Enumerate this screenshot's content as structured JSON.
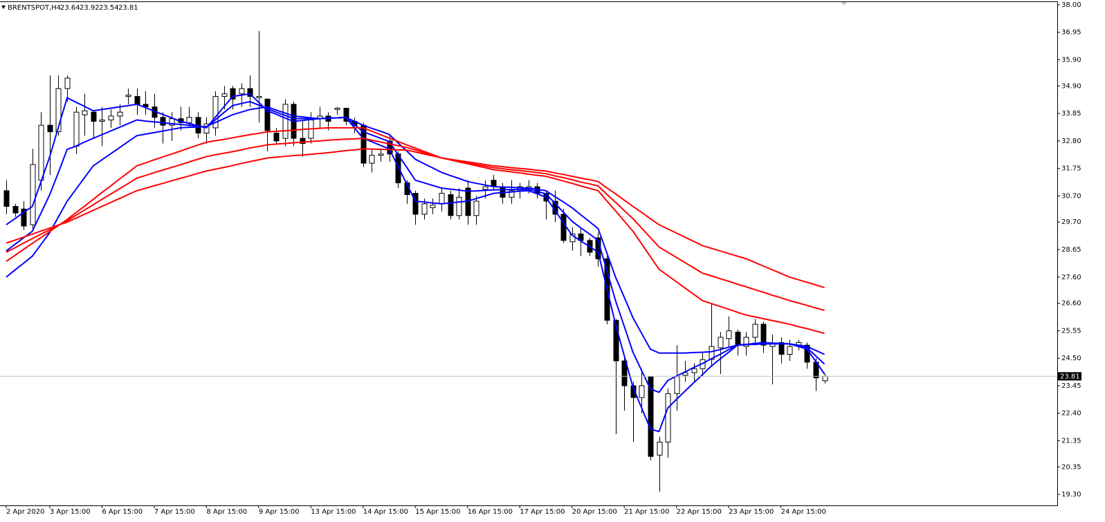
{
  "chart_data": {
    "type": "candlestick",
    "symbol": "BRENTSPOT,H4",
    "categories": [
      "2 Apr 2020",
      null,
      null,
      null,
      null,
      "3 Apr 15:00",
      null,
      null,
      null,
      null,
      null,
      "6 Apr 15:00",
      null,
      null,
      null,
      null,
      null,
      "7 Apr 15:00",
      null,
      null,
      null,
      null,
      null,
      "8 Apr 15:00",
      null,
      null,
      null,
      null,
      null,
      "9 Apr 15:00",
      null,
      null,
      null,
      null,
      null,
      "13 Apr 15:00",
      null,
      null,
      null,
      null,
      null,
      "14 Apr 15:00",
      null,
      null,
      null,
      null,
      null,
      "15 Apr 15:00",
      null,
      null,
      null,
      null,
      null,
      "16 Apr 15:00",
      null,
      null,
      null,
      null,
      null,
      "17 Apr 15:00",
      null,
      null,
      null,
      null,
      null,
      "20 Apr 15:00",
      null,
      null,
      null,
      null,
      null,
      "21 Apr 15:00",
      null,
      null,
      null,
      null,
      null,
      "22 Apr 15:00",
      null,
      null,
      null,
      null,
      null,
      "23 Apr 15:00",
      null,
      null,
      null,
      null,
      null,
      "24 Apr 15:00",
      null,
      null,
      null,
      null,
      null
    ],
    "open": [
      30.9,
      30.3,
      30.2,
      29.6,
      31.3,
      33.4,
      33.15,
      34.8,
      32.6,
      33.8,
      33.9,
      33.55,
      33.6,
      33.75,
      34.5,
      34.5,
      34.2,
      34.1,
      33.7,
      33.4,
      33.65,
      33.5,
      33.7,
      33.1,
      33.3,
      34.5,
      34.8,
      34.6,
      34.8,
      34.45,
      34.4,
      33.1,
      32.9,
      34.2,
      32.9,
      32.9,
      33.65,
      33.75,
      34.0,
      34.05,
      33.55,
      33.4,
      31.95,
      32.25,
      32.8,
      32.3,
      31.2,
      30.8,
      30.0,
      30.25,
      30.4,
      30.75,
      29.95,
      31.0,
      29.95,
      30.95,
      31.3,
      31.05,
      30.65,
      30.9,
      31.0,
      31.05,
      30.8,
      30.5,
      30.0,
      28.95,
      29.25,
      29.0,
      29.1,
      28.3,
      25.95,
      24.4,
      23.45,
      23.0,
      23.8,
      20.8,
      21.3,
      23.15,
      23.85,
      23.95,
      24.1,
      24.45,
      24.9,
      25.25,
      25.5,
      24.95,
      25.3,
      25.8,
      24.95,
      25.1,
      24.65,
      25.0,
      25.0,
      24.35,
      23.64
    ],
    "high": [
      31.3,
      30.4,
      30.5,
      32.5,
      33.9,
      35.3,
      35.3,
      35.3,
      34.1,
      34.6,
      33.9,
      34.1,
      34.0,
      34.2,
      34.8,
      34.8,
      34.7,
      34.6,
      33.9,
      33.9,
      34.1,
      34.1,
      33.9,
      33.7,
      34.7,
      34.9,
      34.9,
      35.0,
      35.3,
      37.0,
      34.4,
      33.3,
      34.4,
      34.3,
      33.6,
      33.9,
      34.1,
      33.9,
      34.1,
      34.05,
      33.7,
      33.5,
      32.5,
      32.5,
      33.0,
      32.4,
      31.3,
      30.9,
      30.6,
      30.6,
      31.0,
      30.9,
      31.0,
      31.3,
      30.7,
      31.3,
      31.5,
      31.2,
      31.3,
      31.2,
      31.3,
      31.2,
      30.9,
      30.9,
      30.2,
      29.5,
      29.5,
      29.1,
      29.3,
      28.4,
      26.0,
      24.6,
      23.6,
      24.1,
      23.8,
      21.5,
      23.35,
      25.0,
      24.4,
      24.3,
      24.7,
      26.6,
      25.5,
      26.1,
      25.6,
      25.5,
      26.0,
      25.9,
      25.4,
      25.3,
      25.2,
      25.2,
      25.1,
      24.5,
      23.92
    ],
    "low": [
      30.0,
      29.9,
      29.4,
      29.4,
      30.9,
      31.5,
      33.0,
      34.3,
      32.3,
      33.0,
      32.9,
      32.6,
      33.3,
      33.4,
      34.2,
      33.8,
      33.8,
      33.3,
      32.7,
      32.8,
      33.2,
      33.3,
      32.9,
      32.7,
      33.0,
      34.0,
      34.0,
      34.1,
      34.1,
      33.5,
      32.4,
      32.7,
      32.6,
      32.6,
      32.2,
      32.7,
      33.3,
      33.2,
      33.8,
      33.4,
      33.1,
      31.8,
      31.6,
      32.0,
      32.0,
      31.0,
      30.4,
      29.6,
      29.8,
      30.0,
      30.1,
      29.8,
      29.8,
      29.6,
      29.6,
      30.6,
      30.9,
      30.4,
      30.4,
      30.6,
      30.8,
      30.6,
      29.8,
      29.7,
      28.9,
      28.6,
      28.4,
      28.4,
      28.0,
      25.8,
      21.6,
      22.5,
      21.3,
      22.4,
      20.6,
      19.4,
      20.7,
      22.5,
      23.6,
      23.6,
      23.8,
      24.2,
      23.9,
      24.9,
      24.6,
      24.6,
      25.0,
      24.7,
      23.5,
      24.3,
      24.4,
      24.8,
      24.1,
      23.25,
      23.54
    ],
    "close": [
      30.3,
      30.05,
      29.55,
      31.9,
      33.4,
      33.15,
      34.8,
      35.2,
      33.9,
      33.95,
      33.55,
      33.6,
      33.75,
      33.9,
      34.55,
      34.2,
      34.1,
      33.7,
      33.4,
      33.65,
      33.5,
      33.7,
      33.1,
      33.45,
      34.5,
      34.6,
      34.4,
      34.8,
      34.5,
      34.5,
      33.2,
      32.8,
      34.2,
      32.9,
      32.7,
      33.6,
      33.75,
      33.55,
      34.05,
      33.55,
      33.4,
      31.95,
      32.25,
      32.3,
      32.3,
      31.2,
      30.75,
      30.0,
      30.4,
      30.35,
      30.8,
      29.95,
      30.65,
      29.95,
      30.5,
      31.05,
      31.05,
      30.65,
      30.9,
      31.05,
      31.05,
      30.8,
      30.5,
      30.0,
      29.0,
      29.25,
      29.0,
      28.55,
      28.3,
      25.95,
      24.4,
      23.45,
      23.0,
      23.45,
      20.75,
      21.3,
      23.15,
      23.8,
      23.95,
      24.1,
      24.45,
      24.95,
      25.3,
      25.55,
      25.0,
      25.3,
      25.8,
      25.0,
      25.05,
      24.65,
      24.95,
      25.1,
      24.35,
      23.75,
      23.81
    ],
    "up_color": "#ffffff",
    "down_color": "#000000",
    "lines": [
      {
        "color": "#0000ff",
        "values": [
          29.6,
          29.83,
          30.07,
          30.3,
          31.25,
          32.2,
          33.33,
          34.45,
          34.28,
          34.12,
          33.95,
          34.0,
          34.05,
          34.1,
          34.15,
          34.2,
          34.07,
          33.94,
          33.81,
          33.68,
          33.55,
          33.47,
          33.38,
          33.3,
          33.7,
          34.1,
          34.5,
          34.55,
          34.6,
          34.28,
          33.95,
          33.82,
          33.68,
          33.55,
          33.58,
          33.62,
          33.65,
          33.67,
          33.68,
          33.7,
          33.3,
          32.9,
          32.77,
          32.63,
          32.5,
          31.83,
          31.17,
          30.5,
          30.47,
          30.43,
          30.4,
          30.43,
          30.47,
          30.5,
          30.6,
          30.7,
          30.8,
          30.83,
          30.85,
          30.88,
          30.9,
          30.78,
          30.65,
          30.17,
          29.68,
          29.2,
          28.98,
          28.77,
          28.55,
          27.18,
          25.8,
          24.6,
          23.4,
          22.6,
          21.8,
          21.7,
          22.6,
          22.93,
          23.25,
          23.57,
          23.88,
          24.2,
          24.47,
          24.73,
          25.0,
          25.03,
          25.07,
          25.1,
          25.08,
          25.07,
          25.05,
          24.95,
          24.85,
          24.38,
          23.9
        ]
      },
      {
        "color": "#0000ff",
        "values": [
          28.6,
          28.85,
          29.1,
          29.35,
          30.05,
          30.75,
          31.6,
          32.48,
          32.6,
          32.76,
          32.9,
          33.04,
          33.18,
          33.32,
          33.46,
          33.6,
          33.56,
          33.53,
          33.5,
          33.46,
          33.43,
          33.4,
          33.36,
          33.33,
          33.6,
          33.88,
          34.15,
          34.23,
          34.3,
          34.17,
          34.03,
          33.9,
          33.78,
          33.65,
          33.65,
          33.65,
          33.65,
          33.67,
          33.68,
          33.7,
          33.43,
          33.15,
          33.03,
          32.9,
          32.78,
          32.28,
          31.8,
          31.3,
          31.2,
          31.1,
          31.0,
          30.96,
          30.92,
          30.88,
          30.89,
          30.91,
          30.93,
          30.94,
          30.94,
          30.95,
          30.95,
          30.87,
          30.78,
          30.43,
          30.08,
          29.73,
          29.48,
          29.25,
          29.0,
          27.86,
          26.7,
          25.72,
          24.73,
          24.03,
          23.33,
          23.2,
          23.65,
          23.82,
          23.98,
          24.15,
          24.3,
          24.48,
          24.65,
          24.83,
          25.0,
          25.03,
          25.05,
          25.08,
          25.07,
          25.06,
          25.05,
          24.98,
          24.9,
          24.59,
          24.28
        ]
      },
      {
        "color": "#0000ff",
        "values": [
          27.6,
          27.87,
          28.13,
          28.4,
          28.85,
          29.3,
          29.9,
          30.5,
          30.95,
          31.4,
          31.85,
          32.08,
          32.31,
          32.54,
          32.77,
          33.0,
          33.06,
          33.12,
          33.18,
          33.24,
          33.3,
          33.32,
          33.33,
          33.35,
          33.5,
          33.65,
          33.8,
          33.9,
          34.0,
          34.05,
          34.1,
          33.98,
          33.87,
          33.75,
          33.72,
          33.68,
          33.65,
          33.67,
          33.68,
          33.7,
          33.55,
          33.4,
          33.28,
          33.17,
          33.05,
          32.73,
          32.42,
          32.1,
          31.93,
          31.77,
          31.6,
          31.48,
          31.37,
          31.25,
          31.18,
          31.12,
          31.05,
          31.04,
          31.03,
          31.01,
          31.0,
          30.95,
          30.9,
          30.68,
          30.47,
          30.25,
          29.98,
          29.72,
          29.45,
          28.53,
          27.6,
          26.83,
          26.05,
          25.45,
          24.85,
          24.7,
          24.7,
          24.7,
          24.7,
          24.72,
          24.73,
          24.75,
          24.83,
          24.92,
          25.0,
          25.02,
          25.03,
          25.05,
          25.05,
          25.05,
          25.05,
          25.0,
          24.95,
          24.8,
          24.65
        ]
      },
      {
        "color": "#ff0000",
        "values": [
          28.2,
          28.43,
          28.66,
          28.89,
          29.11,
          29.34,
          29.57,
          29.8,
          30.06,
          30.31,
          30.57,
          30.83,
          31.08,
          31.34,
          31.59,
          31.85,
          31.96,
          32.08,
          32.19,
          32.3,
          32.41,
          32.53,
          32.64,
          32.75,
          32.81,
          32.86,
          32.92,
          32.98,
          33.04,
          33.09,
          33.15,
          33.17,
          33.19,
          33.21,
          33.24,
          33.26,
          33.28,
          33.3,
          33.3,
          33.3,
          33.3,
          33.3,
          33.17,
          33.04,
          32.91,
          32.78,
          32.65,
          32.53,
          32.4,
          32.28,
          32.15,
          32.08,
          32.0,
          31.93,
          31.85,
          31.78,
          31.7,
          31.66,
          31.62,
          31.58,
          31.53,
          31.49,
          31.45,
          31.36,
          31.27,
          31.18,
          31.08,
          30.99,
          30.9,
          30.51,
          30.13,
          29.74,
          29.35,
          28.87,
          28.38,
          27.9,
          27.66,
          27.42,
          27.18,
          26.94,
          26.7,
          26.59,
          26.48,
          26.37,
          26.26,
          26.15,
          26.08,
          26.01,
          25.94,
          25.87,
          25.8,
          25.71,
          25.63,
          25.54,
          25.45
        ]
      },
      {
        "color": "#ff0000",
        "values": [
          28.55,
          28.72,
          28.9,
          29.07,
          29.24,
          29.41,
          29.58,
          29.75,
          29.96,
          30.16,
          30.36,
          30.57,
          30.77,
          30.97,
          31.17,
          31.38,
          31.48,
          31.59,
          31.69,
          31.79,
          31.89,
          32.0,
          32.1,
          32.2,
          32.27,
          32.33,
          32.39,
          32.46,
          32.53,
          32.59,
          32.65,
          32.68,
          32.7,
          32.73,
          32.75,
          32.78,
          32.8,
          32.83,
          32.85,
          32.87,
          32.88,
          32.9,
          32.83,
          32.76,
          32.69,
          32.62,
          32.55,
          32.46,
          32.35,
          32.26,
          32.15,
          32.09,
          32.03,
          31.97,
          31.9,
          31.84,
          31.78,
          31.74,
          31.7,
          31.67,
          31.63,
          31.59,
          31.55,
          31.47,
          31.4,
          31.32,
          31.23,
          31.16,
          31.08,
          30.76,
          30.46,
          30.14,
          29.83,
          29.47,
          29.11,
          28.75,
          28.55,
          28.35,
          28.15,
          27.95,
          27.75,
          27.65,
          27.54,
          27.44,
          27.33,
          27.23,
          27.12,
          27.02,
          26.91,
          26.81,
          26.7,
          26.61,
          26.52,
          26.42,
          26.33
        ]
      },
      {
        "color": "#ff0000",
        "values": [
          28.9,
          29.01,
          29.13,
          29.24,
          29.36,
          29.47,
          29.59,
          29.7,
          29.85,
          30.0,
          30.15,
          30.3,
          30.45,
          30.6,
          30.75,
          30.9,
          30.99,
          31.09,
          31.18,
          31.28,
          31.37,
          31.46,
          31.56,
          31.65,
          31.72,
          31.79,
          31.86,
          31.94,
          32.01,
          32.08,
          32.15,
          32.18,
          32.21,
          32.24,
          32.26,
          32.29,
          32.32,
          32.35,
          32.39,
          32.43,
          32.46,
          32.5,
          32.49,
          32.48,
          32.47,
          32.46,
          32.45,
          32.38,
          32.3,
          32.23,
          32.15,
          32.1,
          32.05,
          32.0,
          31.95,
          31.9,
          31.85,
          31.82,
          31.78,
          31.75,
          31.72,
          31.68,
          31.65,
          31.58,
          31.52,
          31.45,
          31.38,
          31.32,
          31.25,
          31.01,
          30.78,
          30.54,
          30.3,
          30.07,
          29.83,
          29.6,
          29.44,
          29.28,
          29.12,
          28.96,
          28.8,
          28.7,
          28.6,
          28.5,
          28.4,
          28.3,
          28.16,
          28.02,
          27.88,
          27.74,
          27.6,
          27.5,
          27.4,
          27.3,
          27.2
        ]
      }
    ],
    "ylim": [
      18.88,
      38.13
    ],
    "yticks": [
      {
        "value": 38,
        "label": "38.00"
      },
      {
        "value": 36.95,
        "label": "36.95"
      },
      {
        "value": 35.9,
        "label": "35.90"
      },
      {
        "value": 34.9,
        "label": "34.90"
      },
      {
        "value": 33.85,
        "label": "33.85"
      },
      {
        "value": 32.8,
        "label": "32.80"
      },
      {
        "value": 31.75,
        "label": "31.75"
      },
      {
        "value": 30.7,
        "label": "30.70"
      },
      {
        "value": 29.7,
        "label": "29.70"
      },
      {
        "value": 28.65,
        "label": "28.65"
      },
      {
        "value": 27.6,
        "label": "27.60"
      },
      {
        "value": 26.6,
        "label": "26.60"
      },
      {
        "value": 25.55,
        "label": "25.55"
      },
      {
        "value": 24.5,
        "label": "24.50"
      },
      {
        "value": 23.45,
        "label": "23.45"
      },
      {
        "value": 22.4,
        "label": "22.40"
      },
      {
        "value": 21.35,
        "label": "21.35"
      },
      {
        "value": 20.35,
        "label": "20.35"
      },
      {
        "value": 19.3,
        "label": "19.30"
      }
    ],
    "grid": false
  }
}
